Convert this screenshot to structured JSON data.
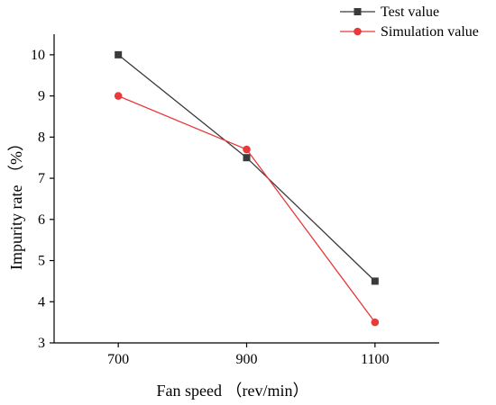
{
  "chart_data": {
    "type": "line",
    "title": "",
    "xlabel": "Fan speed （rev/min）",
    "ylabel": "Impurity rate （%）",
    "x": [
      700,
      900,
      1100
    ],
    "x_tick_labels": [
      "700",
      "900",
      "1100"
    ],
    "y_ticks": [
      3,
      4,
      5,
      6,
      7,
      8,
      9,
      10
    ],
    "y_tick_labels": [
      "3",
      "4",
      "5",
      "6",
      "7",
      "8",
      "9",
      "10"
    ],
    "xlim": [
      600,
      1200
    ],
    "ylim": [
      3,
      10.5
    ],
    "grid": false,
    "legend_position": "top-right, outside plot",
    "series": [
      {
        "name": "Test value",
        "values": [
          10,
          7.5,
          4.5
        ],
        "color": "#3a3a3a",
        "marker": "square"
      },
      {
        "name": "Simulation value",
        "values": [
          9,
          7.7,
          3.5
        ],
        "color": "#e8393b",
        "marker": "circle"
      }
    ]
  }
}
